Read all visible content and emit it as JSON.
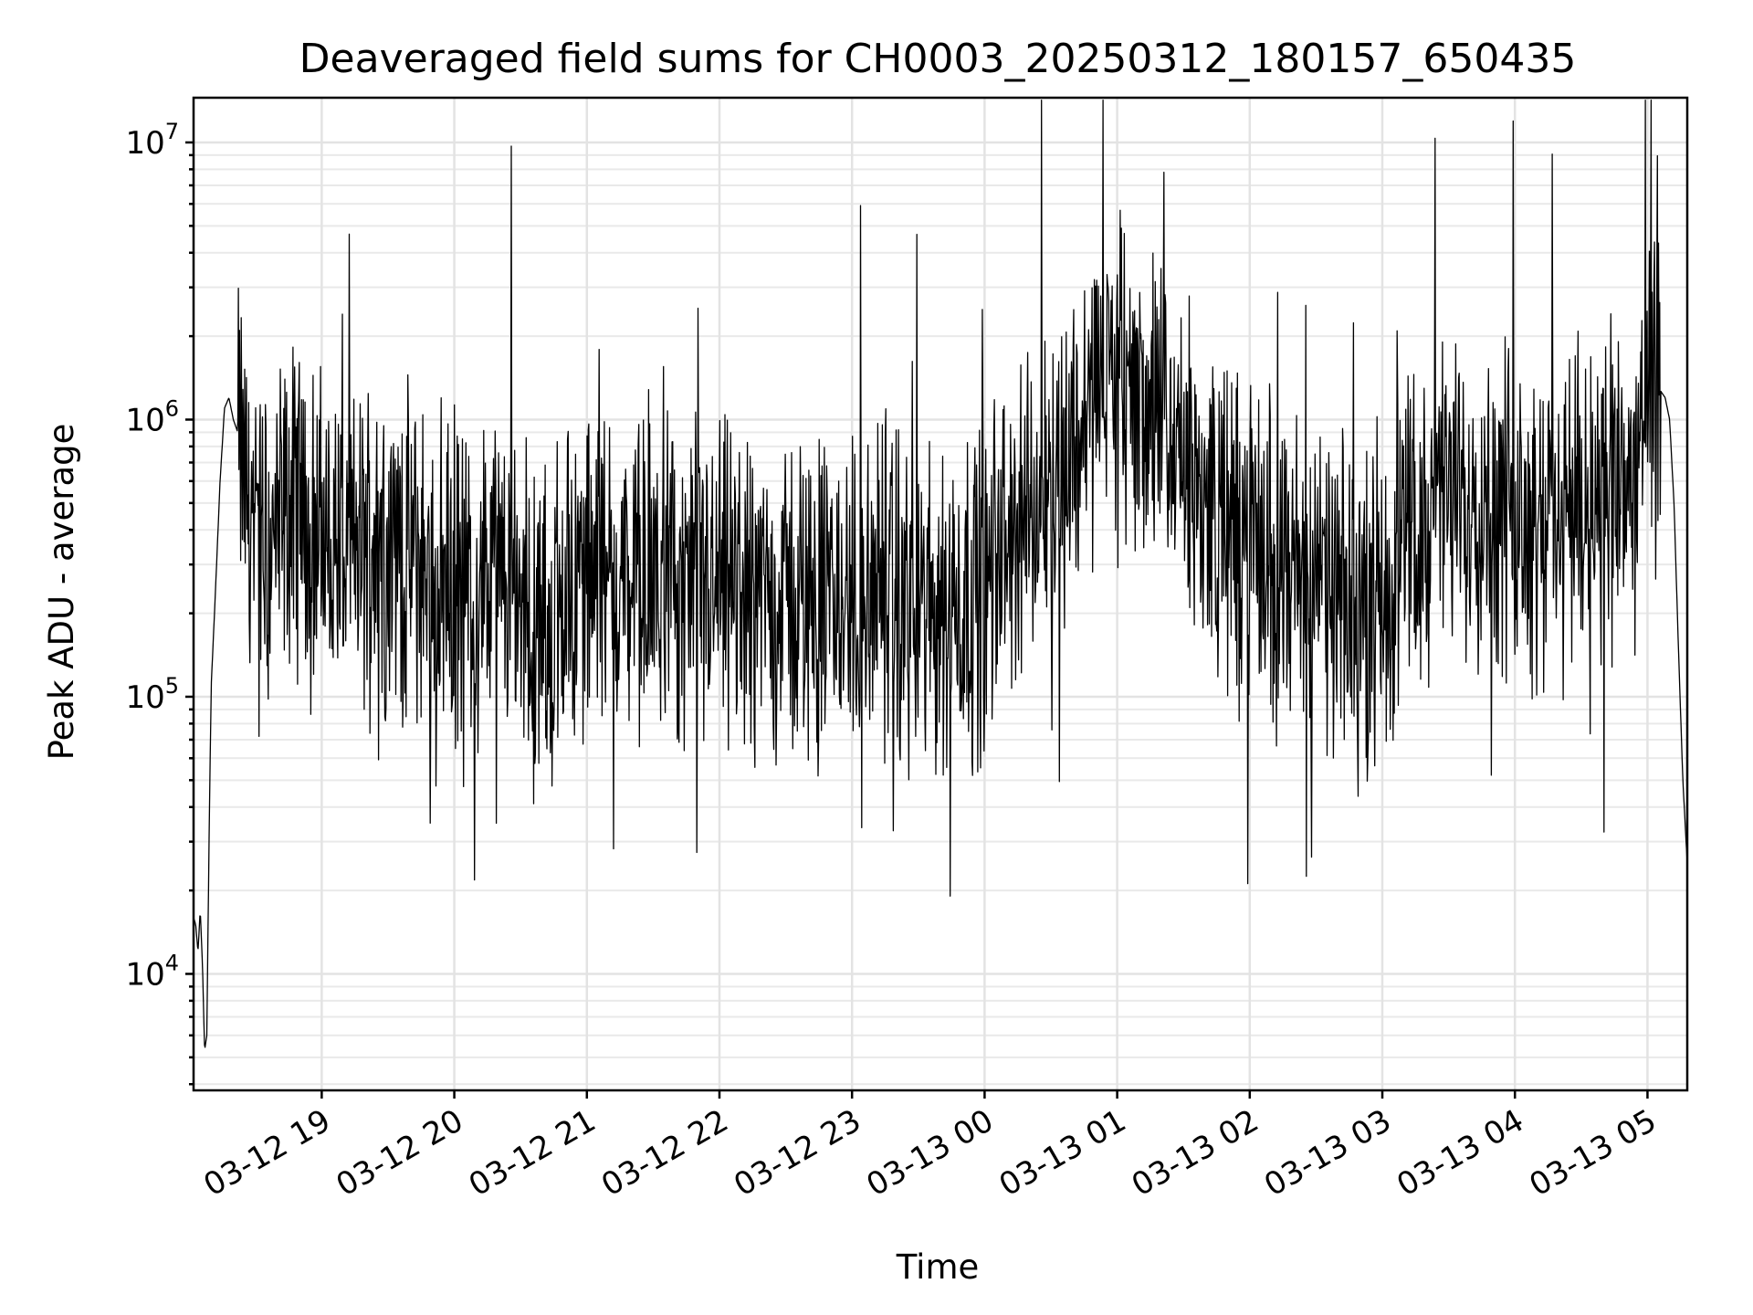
{
  "chart_data": {
    "type": "line",
    "title": "Deaveraged field sums for CH0003_20250312_180157_650435",
    "xlabel": "Time",
    "ylabel": "Peak ADU - average",
    "yscale": "log",
    "ylim": [
      3800,
      14500000
    ],
    "xlim": [
      "2025-03-12T18:02:00",
      "2025-03-13T05:18:00"
    ],
    "grid": true,
    "x_ticks": [
      "03-12 19",
      "03-12 20",
      "03-12 21",
      "03-12 22",
      "03-12 23",
      "03-13 00",
      "03-13 01",
      "03-13 02",
      "03-13 03",
      "03-13 04",
      "03-13 05"
    ],
    "y_ticks": [
      {
        "base": "10",
        "exp": "4",
        "value": 10000
      },
      {
        "base": "10",
        "exp": "5",
        "value": 100000
      },
      {
        "base": "10",
        "exp": "6",
        "value": 1000000
      },
      {
        "base": "10",
        "exp": "7",
        "value": 10000000
      }
    ],
    "series": [
      {
        "color": "#000000",
        "x": [
          "2025-03-12T18:02:00",
          "2025-03-12T18:03:00",
          "2025-03-12T18:04:00",
          "2025-03-12T18:05:00",
          "2025-03-12T18:06:00",
          "2025-03-12T18:07:00",
          "2025-03-12T18:08:00",
          "2025-03-12T18:09:00",
          "2025-03-12T18:10:00",
          "2025-03-12T18:12:00",
          "2025-03-12T18:14:00",
          "2025-03-12T18:16:00",
          "2025-03-12T18:18:00",
          "2025-03-12T18:20:00",
          "2025-03-12T18:22:00",
          "2025-03-12T18:25:00",
          "2025-03-12T18:28:00",
          "2025-03-12T18:30:00",
          "2025-03-12T18:33:00",
          "2025-03-12T18:36:00",
          "2025-03-12T18:40:00",
          "2025-03-12T18:45:00",
          "2025-03-12T18:50:00",
          "2025-03-12T18:55:00",
          "2025-03-12T19:00:00",
          "2025-03-12T19:05:00",
          "2025-03-12T19:10:00",
          "2025-03-12T19:15:00",
          "2025-03-12T19:20:00",
          "2025-03-12T19:25:00",
          "2025-03-12T19:30:00",
          "2025-03-12T19:35:00",
          "2025-03-12T19:40:00",
          "2025-03-12T19:45:00",
          "2025-03-12T19:50:00",
          "2025-03-12T19:55:00",
          "2025-03-12T20:00:00",
          "2025-03-12T20:10:00",
          "2025-03-12T20:20:00",
          "2025-03-12T20:30:00",
          "2025-03-12T20:35:00",
          "2025-03-12T20:40:00",
          "2025-03-12T20:45:00",
          "2025-03-12T20:50:00",
          "2025-03-12T21:00:00",
          "2025-03-12T21:10:00",
          "2025-03-12T21:15:00",
          "2025-03-12T21:30:00",
          "2025-03-12T22:00:00",
          "2025-03-12T22:30:00",
          "2025-03-12T23:00:00",
          "2025-03-12T23:30:00",
          "2025-03-12T23:45:00",
          "2025-03-13T00:00:00",
          "2025-03-13T00:10:00",
          "2025-03-13T00:20:00",
          "2025-03-13T00:30:00",
          "2025-03-13T00:40:00",
          "2025-03-13T00:45:00",
          "2025-03-13T00:50:00",
          "2025-03-13T00:55:00",
          "2025-03-13T01:00:00",
          "2025-03-13T01:05:00",
          "2025-03-13T01:10:00",
          "2025-03-13T01:15:00",
          "2025-03-13T01:20:00",
          "2025-03-13T01:25:00",
          "2025-03-13T01:30:00",
          "2025-03-13T01:40:00",
          "2025-03-13T01:50:00",
          "2025-03-13T02:00:00",
          "2025-03-13T02:15:00",
          "2025-03-13T02:30:00",
          "2025-03-13T02:45:00",
          "2025-03-13T03:00:00",
          "2025-03-13T03:10:00",
          "2025-03-13T03:20:00",
          "2025-03-13T03:30:00",
          "2025-03-13T03:40:00",
          "2025-03-13T03:50:00",
          "2025-03-13T04:00:00",
          "2025-03-13T04:10:00",
          "2025-03-13T04:20:00",
          "2025-03-13T04:30:00",
          "2025-03-13T04:40:00",
          "2025-03-13T04:50:00",
          "2025-03-13T05:00:00",
          "2025-03-13T05:05:00",
          "2025-03-13T05:08:00",
          "2025-03-13T05:10:00",
          "2025-03-13T05:12:00",
          "2025-03-13T05:14:00",
          "2025-03-13T05:16:00",
          "2025-03-13T05:18:00"
        ],
        "y": [
          16000,
          15000,
          12000,
          17000,
          11000,
          5300,
          6000,
          30000,
          110000,
          250000,
          600000,
          1100000,
          1200000,
          1000000,
          900000,
          600000,
          450000,
          400000,
          350000,
          330000,
          380000,
          450000,
          500000,
          420000,
          380000,
          360000,
          340000,
          330000,
          350000,
          380000,
          360000,
          330000,
          320000,
          300000,
          280000,
          270000,
          260000,
          250000,
          245000,
          240000,
          180000,
          150000,
          200000,
          250000,
          270000,
          270000,
          260000,
          250000,
          240000,
          230000,
          220000,
          210000,
          220000,
          250000,
          350000,
          450000,
          600000,
          800000,
          1000000,
          1300000,
          1400000,
          1400000,
          1300000,
          1200000,
          1100000,
          900000,
          800000,
          700000,
          500000,
          400000,
          350000,
          300000,
          250000,
          200000,
          250000,
          350000,
          450000,
          500000,
          550000,
          500000,
          480000,
          460000,
          470000,
          500000,
          520000,
          600000,
          900000,
          1300000,
          1200000,
          1000000,
          500000,
          150000,
          50000,
          25000
        ]
      }
    ]
  }
}
